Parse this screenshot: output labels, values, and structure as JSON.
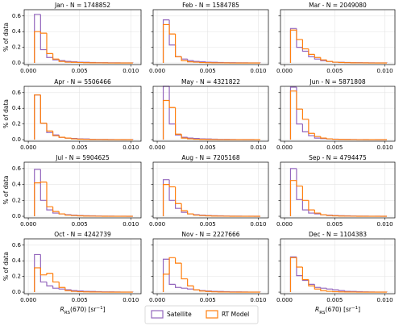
{
  "chart_data": [
    {
      "type": "histogram",
      "title": "Jan - N = 1748852",
      "ylabel": "% of data",
      "ytick_labels": true,
      "bins": [
        0.0006,
        0.0012,
        0.0018,
        0.0024,
        0.003,
        0.0036,
        0.0042,
        0.0048,
        0.0054,
        0.006,
        0.0066,
        0.0072,
        0.0078,
        0.0084,
        0.009,
        0.0096,
        0.0102
      ],
      "series": [
        {
          "name": "Satellite",
          "color": "#9467bd",
          "values": [
            0.62,
            0.17,
            0.07,
            0.04,
            0.03,
            0.02,
            0.015,
            0.01,
            0.008,
            0.006,
            0.004,
            0.003,
            0.002,
            0.002,
            0.001,
            0.001
          ]
        },
        {
          "name": "RT Model",
          "color": "#ff7f0e",
          "values": [
            0.4,
            0.38,
            0.12,
            0.05,
            0.02,
            0.01,
            0.008,
            0.005,
            0.003,
            0.002,
            0.001,
            0.001,
            0,
            0,
            0,
            0
          ]
        }
      ],
      "xlim": [
        -0.0004,
        0.011
      ],
      "ylim": [
        -0.02,
        0.68
      ],
      "xticks": [
        {
          "value": 0,
          "label": "0.000"
        },
        0.005,
        {
          "value": 0.01,
          "label": "0.010"
        }
      ],
      "yticks": [
        {
          "value": 0,
          "label": "0.0"
        },
        0.2,
        0.4,
        0.6
      ],
      "grid": true
    },
    {
      "type": "histogram",
      "title": "Feb - N = 1584785",
      "ytick_labels": false,
      "bins": [
        0.0006,
        0.0012,
        0.0018,
        0.0024,
        0.003,
        0.0036,
        0.0042,
        0.0048,
        0.0054,
        0.006,
        0.0066,
        0.0072,
        0.0078,
        0.0084,
        0.009,
        0.0096,
        0.0102
      ],
      "series": [
        {
          "color": "#9467bd",
          "values": [
            0.55,
            0.23,
            0.08,
            0.05,
            0.03,
            0.02,
            0.015,
            0.01,
            0.008,
            0.006,
            0.004,
            0.003,
            0.002,
            0.002,
            0.001,
            0.001
          ]
        },
        {
          "color": "#ff7f0e",
          "values": [
            0.49,
            0.37,
            0.08,
            0.03,
            0.015,
            0.01,
            0.005,
            0.003,
            0.002,
            0.001,
            0.001,
            0,
            0,
            0,
            0,
            0
          ]
        }
      ],
      "xlim": [
        -0.0004,
        0.011
      ],
      "ylim": [
        -0.02,
        0.68
      ],
      "xticks": [
        {
          "value": 0,
          "label": "0.000"
        },
        0.005,
        {
          "value": 0.01,
          "label": "0.010"
        }
      ],
      "yticks": [
        0,
        0.2,
        0.4,
        0.6
      ],
      "grid": true
    },
    {
      "type": "histogram",
      "title": "Mar - N = 2049080",
      "ytick_labels": false,
      "bins": [
        0.0006,
        0.0012,
        0.0018,
        0.0024,
        0.003,
        0.0036,
        0.0042,
        0.0048,
        0.0054,
        0.006,
        0.0066,
        0.0072,
        0.0078,
        0.0084,
        0.009,
        0.0096,
        0.0102
      ],
      "series": [
        {
          "color": "#9467bd",
          "values": [
            0.44,
            0.2,
            0.15,
            0.08,
            0.05,
            0.03,
            0.02,
            0.01,
            0.008,
            0.006,
            0.004,
            0.003,
            0.002,
            0.002,
            0.001,
            0.001
          ]
        },
        {
          "color": "#ff7f0e",
          "values": [
            0.42,
            0.3,
            0.18,
            0.11,
            0.07,
            0.04,
            0.02,
            0.01,
            0.006,
            0.004,
            0.002,
            0.001,
            0.001,
            0,
            0,
            0
          ]
        }
      ],
      "xlim": [
        -0.0004,
        0.011
      ],
      "ylim": [
        -0.02,
        0.68
      ],
      "xticks": [
        {
          "value": 0,
          "label": "0.000"
        },
        0.005,
        {
          "value": 0.01,
          "label": "0.010"
        }
      ],
      "yticks": [
        0,
        0.2,
        0.4,
        0.6
      ],
      "grid": true
    },
    {
      "type": "histogram",
      "title": "Apr - N = 5506466",
      "ylabel": "% of data",
      "ytick_labels": true,
      "bins": [
        0.0006,
        0.0012,
        0.0018,
        0.0024,
        0.003,
        0.0036,
        0.0042,
        0.0048,
        0.0054,
        0.006,
        0.0066,
        0.0072,
        0.0078,
        0.0084,
        0.009,
        0.0096,
        0.0102
      ],
      "series": [
        {
          "color": "#9467bd",
          "values": [
            0.57,
            0.21,
            0.09,
            0.06,
            0.03,
            0.02,
            0.015,
            0.01,
            0.008,
            0.005,
            0.004,
            0.003,
            0.002,
            0.001,
            0.001,
            0.001
          ]
        },
        {
          "color": "#ff7f0e",
          "values": [
            0.57,
            0.21,
            0.11,
            0.05,
            0.03,
            0.02,
            0.01,
            0.006,
            0.004,
            0.002,
            0.001,
            0.001,
            0,
            0,
            0,
            0
          ]
        }
      ],
      "xlim": [
        -0.0004,
        0.011
      ],
      "ylim": [
        -0.02,
        0.68
      ],
      "xticks": [
        {
          "value": 0,
          "label": "0.000"
        },
        0.005,
        {
          "value": 0.01,
          "label": "0.010"
        }
      ],
      "yticks": [
        {
          "value": 0,
          "label": "0.0"
        },
        0.2,
        0.4,
        0.6
      ],
      "grid": true
    },
    {
      "type": "histogram",
      "title": "May - N = 4321822",
      "ytick_labels": false,
      "bins": [
        0.0006,
        0.0012,
        0.0018,
        0.0024,
        0.003,
        0.0036,
        0.0042,
        0.0048,
        0.0054,
        0.006,
        0.0066,
        0.0072,
        0.0078,
        0.0084,
        0.009,
        0.0096,
        0.0102
      ],
      "series": [
        {
          "color": "#9467bd",
          "values": [
            0.68,
            0.2,
            0.06,
            0.03,
            0.02,
            0.015,
            0.01,
            0.008,
            0.006,
            0.004,
            0.003,
            0.002,
            0.001,
            0.001,
            0.001,
            0
          ]
        },
        {
          "color": "#ff7f0e",
          "values": [
            0.5,
            0.41,
            0.07,
            0.02,
            0.01,
            0.005,
            0.003,
            0.002,
            0.001,
            0,
            0,
            0,
            0,
            0,
            0,
            0
          ]
        }
      ],
      "xlim": [
        -0.0004,
        0.011
      ],
      "ylim": [
        -0.02,
        0.68
      ],
      "xticks": [
        {
          "value": 0,
          "label": "0.000"
        },
        0.005,
        {
          "value": 0.01,
          "label": "0.010"
        }
      ],
      "yticks": [
        0,
        0.2,
        0.4,
        0.6
      ],
      "grid": true
    },
    {
      "type": "histogram",
      "title": "Jun - N = 5871808",
      "ytick_labels": false,
      "bins": [
        0.0006,
        0.0012,
        0.0018,
        0.0024,
        0.003,
        0.0036,
        0.0042,
        0.0048,
        0.0054,
        0.006,
        0.0066,
        0.0072,
        0.0078,
        0.0084,
        0.009,
        0.0096,
        0.0102
      ],
      "series": [
        {
          "color": "#9467bd",
          "values": [
            0.67,
            0.2,
            0.1,
            0.05,
            0.02,
            0.015,
            0.01,
            0.006,
            0.004,
            0.003,
            0.002,
            0.001,
            0.001,
            0,
            0,
            0
          ]
        },
        {
          "color": "#ff7f0e",
          "values": [
            0.62,
            0.39,
            0.26,
            0.08,
            0.04,
            0.02,
            0.01,
            0.005,
            0.003,
            0.002,
            0.001,
            0,
            0,
            0,
            0,
            0
          ]
        }
      ],
      "xlim": [
        -0.0004,
        0.011
      ],
      "ylim": [
        -0.02,
        0.68
      ],
      "xticks": [
        {
          "value": 0,
          "label": "0.000"
        },
        0.005,
        {
          "value": 0.01,
          "label": "0.010"
        }
      ],
      "yticks": [
        0,
        0.2,
        0.4,
        0.6
      ],
      "grid": true
    },
    {
      "type": "histogram",
      "title": "Jul - N = 5904625",
      "ylabel": "% of data",
      "ytick_labels": true,
      "bins": [
        0.0006,
        0.0012,
        0.0018,
        0.0024,
        0.003,
        0.0036,
        0.0042,
        0.0048,
        0.0054,
        0.006,
        0.0066,
        0.0072,
        0.0078,
        0.0084,
        0.009,
        0.0096,
        0.0102
      ],
      "series": [
        {
          "color": "#9467bd",
          "values": [
            0.59,
            0.2,
            0.08,
            0.04,
            0.03,
            0.02,
            0.015,
            0.01,
            0.007,
            0.005,
            0.003,
            0.002,
            0.002,
            0.001,
            0.001,
            0
          ]
        },
        {
          "color": "#ff7f0e",
          "values": [
            0.42,
            0.43,
            0.12,
            0.06,
            0.03,
            0.015,
            0.01,
            0.005,
            0.003,
            0.002,
            0.001,
            0,
            0,
            0,
            0,
            0
          ]
        }
      ],
      "xlim": [
        -0.0004,
        0.011
      ],
      "ylim": [
        -0.02,
        0.68
      ],
      "xticks": [
        {
          "value": 0,
          "label": "0.000"
        },
        0.005,
        {
          "value": 0.01,
          "label": "0.010"
        }
      ],
      "yticks": [
        {
          "value": 0,
          "label": "0.0"
        },
        0.2,
        0.4,
        0.6
      ],
      "grid": true
    },
    {
      "type": "histogram",
      "title": "Aug - N = 7205168",
      "ytick_labels": false,
      "bins": [
        0.0006,
        0.0012,
        0.0018,
        0.0024,
        0.003,
        0.0036,
        0.0042,
        0.0048,
        0.0054,
        0.006,
        0.0066,
        0.0072,
        0.0078,
        0.0084,
        0.009,
        0.0096,
        0.0102
      ],
      "series": [
        {
          "color": "#9467bd",
          "values": [
            0.46,
            0.2,
            0.1,
            0.05,
            0.03,
            0.02,
            0.015,
            0.01,
            0.007,
            0.005,
            0.003,
            0.002,
            0.002,
            0.001,
            0.001,
            0
          ]
        },
        {
          "color": "#ff7f0e",
          "values": [
            0.4,
            0.37,
            0.16,
            0.07,
            0.03,
            0.015,
            0.01,
            0.005,
            0.003,
            0.002,
            0.001,
            0,
            0,
            0,
            0,
            0
          ]
        }
      ],
      "xlim": [
        -0.0004,
        0.011
      ],
      "ylim": [
        -0.02,
        0.68
      ],
      "xticks": [
        {
          "value": 0,
          "label": "0.000"
        },
        0.005,
        {
          "value": 0.01,
          "label": "0.010"
        }
      ],
      "yticks": [
        0,
        0.2,
        0.4,
        0.6
      ],
      "grid": true
    },
    {
      "type": "histogram",
      "title": "Sep - N = 4794475",
      "ytick_labels": false,
      "bins": [
        0.0006,
        0.0012,
        0.0018,
        0.0024,
        0.003,
        0.0036,
        0.0042,
        0.0048,
        0.0054,
        0.006,
        0.0066,
        0.0072,
        0.0078,
        0.0084,
        0.009,
        0.0096,
        0.0102
      ],
      "series": [
        {
          "color": "#9467bd",
          "values": [
            0.6,
            0.21,
            0.08,
            0.04,
            0.03,
            0.02,
            0.015,
            0.01,
            0.007,
            0.005,
            0.003,
            0.002,
            0.002,
            0.001,
            0.001,
            0
          ]
        },
        {
          "color": "#ff7f0e",
          "values": [
            0.45,
            0.38,
            0.2,
            0.08,
            0.04,
            0.02,
            0.01,
            0.005,
            0.003,
            0.002,
            0.001,
            0,
            0,
            0,
            0,
            0
          ]
        }
      ],
      "xlim": [
        -0.0004,
        0.011
      ],
      "ylim": [
        -0.02,
        0.68
      ],
      "xticks": [
        {
          "value": 0,
          "label": "0.000"
        },
        0.005,
        {
          "value": 0.01,
          "label": "0.010"
        }
      ],
      "yticks": [
        0,
        0.2,
        0.4,
        0.6
      ],
      "grid": true
    },
    {
      "type": "histogram",
      "title": "Oct - N = 4242739",
      "ylabel": "% of data",
      "ytick_labels": true,
      "xlabel": [
        {
          "text": "R"
        },
        {
          "text": "RS",
          "shift": "sub"
        },
        {
          "text": "(670) [sr"
        },
        {
          "text": "−1",
          "shift": "sup"
        },
        {
          "text": "]"
        }
      ],
      "bins": [
        0.0006,
        0.0012,
        0.0018,
        0.0024,
        0.003,
        0.0036,
        0.0042,
        0.0048,
        0.0054,
        0.006,
        0.0066,
        0.0072,
        0.0078,
        0.0084,
        0.009,
        0.0096,
        0.0102
      ],
      "series": [
        {
          "color": "#9467bd",
          "values": [
            0.48,
            0.13,
            0.08,
            0.05,
            0.04,
            0.03,
            0.02,
            0.015,
            0.01,
            0.008,
            0.006,
            0.004,
            0.003,
            0.002,
            0.001,
            0.001
          ]
        },
        {
          "color": "#ff7f0e",
          "values": [
            0.31,
            0.22,
            0.24,
            0.13,
            0.06,
            0.02,
            0.01,
            0.005,
            0.003,
            0.002,
            0.001,
            0,
            0,
            0,
            0,
            0
          ]
        }
      ],
      "xlim": [
        -0.0004,
        0.011
      ],
      "ylim": [
        -0.02,
        0.68
      ],
      "xticks": [
        {
          "value": 0,
          "label": "0.000"
        },
        0.005,
        {
          "value": 0.01,
          "label": "0.010"
        }
      ],
      "yticks": [
        {
          "value": 0,
          "label": "0.0"
        },
        0.2,
        0.4,
        0.6
      ],
      "grid": true
    },
    {
      "type": "histogram",
      "title": "Nov - N = 2227666",
      "ytick_labels": false,
      "xlabel": [
        {
          "text": "R"
        },
        {
          "text": "RS",
          "shift": "sub"
        },
        {
          "text": "(670) [sr"
        },
        {
          "text": "−1",
          "shift": "sup"
        },
        {
          "text": "]"
        }
      ],
      "bins": [
        0.0006,
        0.0012,
        0.0018,
        0.0024,
        0.003,
        0.0036,
        0.0042,
        0.0048,
        0.0054,
        0.006,
        0.0066,
        0.0072,
        0.0078,
        0.0084,
        0.009,
        0.0096,
        0.0102
      ],
      "series": [
        {
          "color": "#9467bd",
          "values": [
            0.42,
            0.1,
            0.06,
            0.05,
            0.04,
            0.03,
            0.02,
            0.015,
            0.01,
            0.008,
            0.006,
            0.004,
            0.003,
            0.002,
            0.001,
            0.001
          ]
        },
        {
          "color": "#ff7f0e",
          "values": [
            0.23,
            0.44,
            0.37,
            0.17,
            0.08,
            0.03,
            0.015,
            0.008,
            0.004,
            0.002,
            0.001,
            0,
            0,
            0,
            0,
            0
          ]
        }
      ],
      "xlim": [
        -0.0004,
        0.011
      ],
      "ylim": [
        -0.02,
        0.68
      ],
      "xticks": [
        {
          "value": 0,
          "label": "0.000"
        },
        0.005,
        {
          "value": 0.01,
          "label": "0.010"
        }
      ],
      "yticks": [
        0,
        0.2,
        0.4,
        0.6
      ],
      "grid": true
    },
    {
      "type": "histogram",
      "title": "Dec - N = 1104383",
      "ytick_labels": false,
      "xlabel": [
        {
          "text": "R"
        },
        {
          "text": "RS",
          "shift": "sub"
        },
        {
          "text": "(670) [sr"
        },
        {
          "text": "−1",
          "shift": "sup"
        },
        {
          "text": "]"
        }
      ],
      "bins": [
        0.0006,
        0.0012,
        0.0018,
        0.0024,
        0.003,
        0.0036,
        0.0042,
        0.0048,
        0.0054,
        0.006,
        0.0066,
        0.0072,
        0.0078,
        0.0084,
        0.009,
        0.0096,
        0.0102
      ],
      "series": [
        {
          "color": "#9467bd",
          "values": [
            0.45,
            0.21,
            0.15,
            0.1,
            0.06,
            0.05,
            0.04,
            0.03,
            0.02,
            0.01,
            0.008,
            0.006,
            0.004,
            0.002,
            0.001,
            0.001
          ]
        },
        {
          "color": "#ff7f0e",
          "values": [
            0.44,
            0.32,
            0.16,
            0.08,
            0.04,
            0.02,
            0.01,
            0.006,
            0.003,
            0.002,
            0.001,
            0,
            0,
            0,
            0,
            0
          ]
        }
      ],
      "xlim": [
        -0.0004,
        0.011
      ],
      "ylim": [
        -0.02,
        0.68
      ],
      "xticks": [
        {
          "value": 0,
          "label": "0.000"
        },
        0.005,
        {
          "value": 0.01,
          "label": "0.010"
        }
      ],
      "yticks": [
        0,
        0.2,
        0.4,
        0.6
      ],
      "grid": true
    }
  ]
}
